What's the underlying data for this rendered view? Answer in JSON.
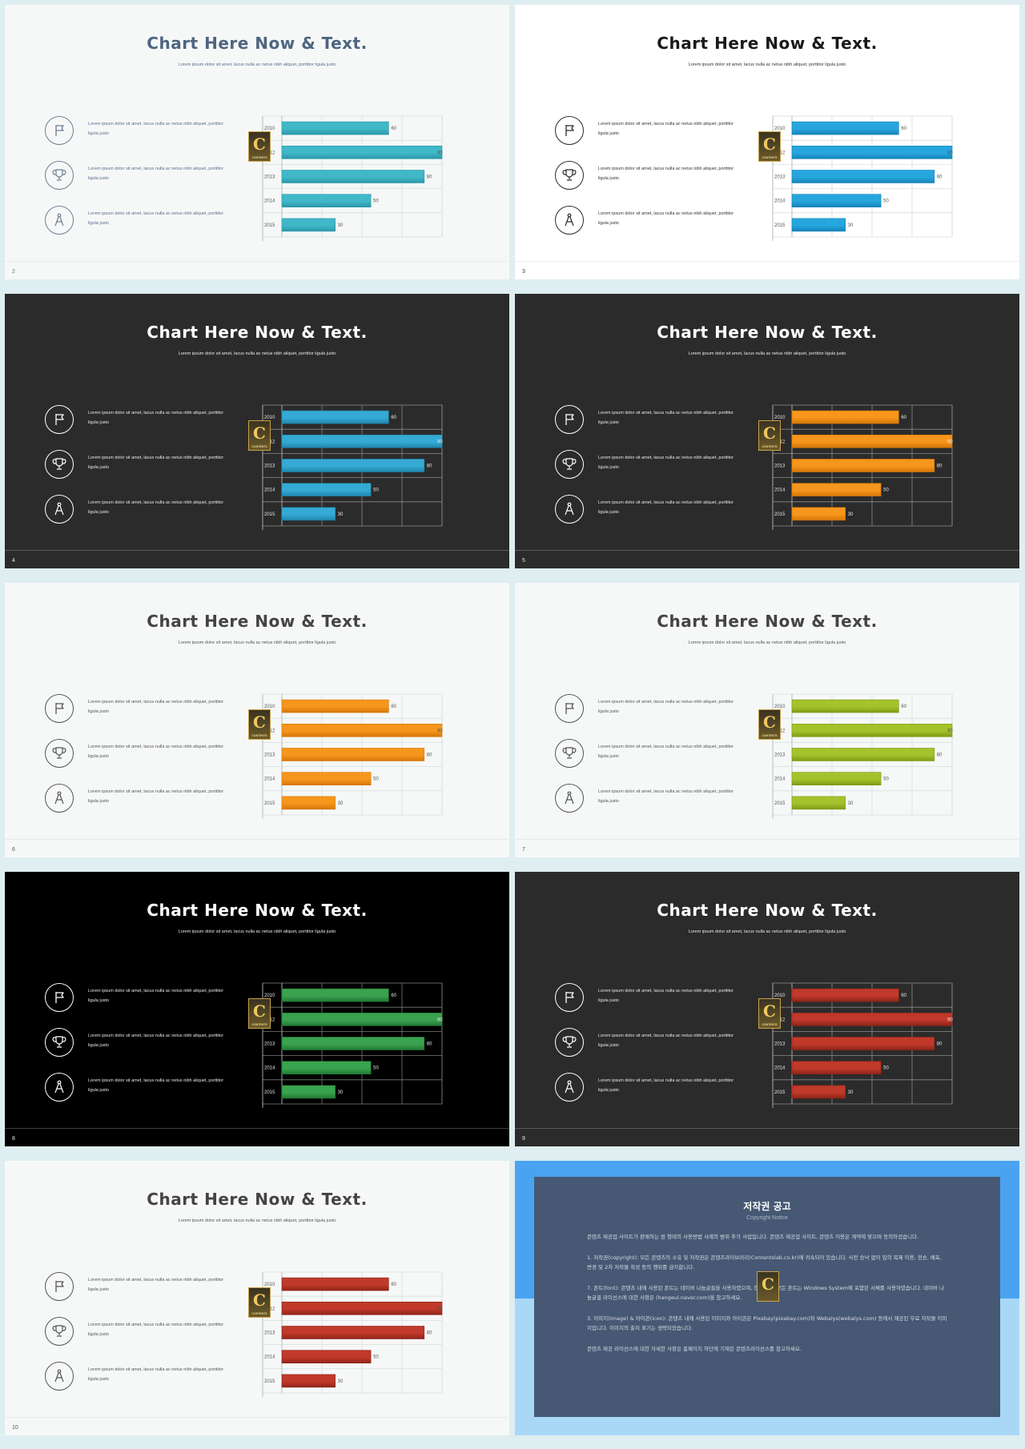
{
  "slides": [
    {
      "number": "2",
      "title": "Chart Here Now & Text.",
      "subtitle": "Lorem ipsum dolor sit amet, lacus nulla ac netus nibh aliquet, porttitor ligula justo",
      "theme": {
        "bg": "#f6f8f8",
        "title": "#4e6580",
        "text": "#5a6f8c",
        "circle": "#6f7f92",
        "grid": "#d8dddd",
        "axis": "#b5bcbc",
        "bar": "#40b8c8",
        "barDark": "#2a98a8",
        "label": "#555555"
      }
    },
    {
      "number": "3",
      "title": "Chart Here Now & Text.",
      "subtitle": "Lorem ipsum dolor sit amet, lacus nulla ac netus nibh aliquet, porttitor ligula justo",
      "theme": {
        "bg": "#ffffff",
        "title": "#1a1a1a",
        "text": "#333333",
        "circle": "#2a2a2a",
        "grid": "#d8dddd",
        "axis": "#b5bcbc",
        "bar": "#27a6de",
        "barDark": "#1583b8",
        "label": "#555555"
      }
    },
    {
      "number": "4",
      "title": "Chart Here Now & Text.",
      "subtitle": "Lorem ipsum dolor sit amet, lacus nulla ac netus nibh aliquet, porttitor ligula justo",
      "theme": {
        "bg": "#2b2b2b",
        "title": "#ffffff",
        "text": "#e8e8e8",
        "circle": "#ffffff",
        "grid": "#8a8a8a",
        "axis": "#a8a8a8",
        "bar": "#35aad4",
        "barDark": "#1f86ad",
        "label": "#e8e8e8"
      }
    },
    {
      "number": "5",
      "title": "Chart Here Now & Text.",
      "subtitle": "Lorem ipsum dolor sit amet, lacus nulla ac netus nibh aliquet, porttitor ligula justo",
      "theme": {
        "bg": "#2b2b2b",
        "title": "#ffffff",
        "text": "#e8e8e8",
        "circle": "#ffffff",
        "grid": "#8a8a8a",
        "axis": "#a8a8a8",
        "bar": "#f7961c",
        "barDark": "#d57708",
        "label": "#e8e8e8"
      }
    },
    {
      "number": "6",
      "title": "Chart Here Now & Text.",
      "subtitle": "Lorem ipsum dolor sit amet, lacus nulla ac netus nibh aliquet, porttitor ligula justo",
      "theme": {
        "bg": "#f6f8f8",
        "title": "#444444",
        "text": "#555555",
        "circle": "#555555",
        "grid": "#d8dddd",
        "axis": "#b5bcbc",
        "bar": "#f7961c",
        "barDark": "#d57708",
        "label": "#555555"
      }
    },
    {
      "number": "7",
      "title": "Chart Here Now & Text.",
      "subtitle": "Lorem ipsum dolor sit amet, lacus nulla ac netus nibh aliquet, porttitor ligula justo",
      "theme": {
        "bg": "#f6f8f8",
        "title": "#444444",
        "text": "#555555",
        "circle": "#555555",
        "grid": "#d8dddd",
        "axis": "#b5bcbc",
        "bar": "#a4c22b",
        "barDark": "#7f9a16",
        "label": "#555555"
      }
    },
    {
      "number": "8",
      "title": "Chart Here Now & Text.",
      "subtitle": "Lorem ipsum dolor sit amet, lacus nulla ac netus nibh aliquet, porttitor ligula justo",
      "theme": {
        "bg": "#000000",
        "title": "#ffffff",
        "text": "#e8e8e8",
        "circle": "#ffffff",
        "grid": "#7a7a7a",
        "axis": "#a8a8a8",
        "bar": "#3aa34f",
        "barDark": "#237a35",
        "label": "#e8e8e8"
      }
    },
    {
      "number": "9",
      "title": "Chart Here Now & Text.",
      "subtitle": "Lorem ipsum dolor sit amet, lacus nulla ac netus nibh aliquet, porttitor ligula justo",
      "theme": {
        "bg": "#2b2b2b",
        "title": "#ffffff",
        "text": "#e8e8e8",
        "circle": "#ffffff",
        "grid": "#8a8a8a",
        "axis": "#a8a8a8",
        "bar": "#c0392b",
        "barDark": "#8f2418",
        "label": "#e8e8e8"
      }
    },
    {
      "number": "10",
      "title": "Chart Here Now & Text.",
      "subtitle": "Lorem ipsum dolor sit amet, lacus nulla ac netus nibh aliquet, porttitor ligula justo",
      "theme": {
        "bg": "#f6f8f8",
        "title": "#444444",
        "text": "#555555",
        "circle": "#555555",
        "grid": "#d8dddd",
        "axis": "#b5bcbc",
        "bar": "#c0392b",
        "barDark": "#8f2418",
        "label": "#555555"
      }
    }
  ],
  "row_text": "Lorem ipsum dolor sit amet, lacus nulla ac netus nibh aliquet, porttitor ligula justo",
  "icons": [
    "flag-icon",
    "trophy-icon",
    "compass-icon"
  ],
  "logo": {
    "letter": "C",
    "caption": "CONTENTS"
  },
  "chart_data": {
    "type": "bar",
    "orientation": "horizontal",
    "categories": [
      "2010",
      "2012",
      "2013",
      "2014",
      "2015"
    ],
    "values": [
      60,
      90,
      80,
      50,
      30
    ],
    "data_labels": [
      "60",
      "90",
      "80",
      "50",
      "30"
    ],
    "xlim": [
      0,
      90
    ],
    "grid": true
  },
  "copyright": {
    "number": "",
    "title": "저작권 공고",
    "subtitle": "Copyright Notice",
    "paragraphs": [
      "콘텐츠 제공업 사이트가 판매하는 원 형태의 사용방법 사례의 범위 추가 사업입니다. 콘텐츠 제공업 사이트, 콘텐츠 이용은 계약에 맞으며 동의하셨습니다.",
      "1. 저작권(copyright): 모든 콘텐츠의 소유 및 저작권은 콘텐츠라이브러리(Contentslab.co.kr)에 귀속되어 있습니다. 사전 승낙 없이 임의 복제 이용, 전송, 배포, 변경 및 2차 저작물 작성 등의 행위를 금지합니다.",
      "7. 폰트(font): 콘텐츠 내에 사용된 폰트는 네이버 나눔글꼴을 사용하였으며, 한글 외의 모든 폰트는 Windows System에 포함된 서체를 사용하였습니다. 네이버 나눔글꼴 라이선스에 대한 사항은 (hangeul.naver.com)을 참고하세요.",
      "3. 이미지(image) & 아이콘(icon): 콘텐츠 내에 사용된 이미지와 아이콘은 Pixabay(pixabay.com)와 Webalys(webalys.com) 등에서 제공된 무료 저작물 이미지입니다. 이미지의 출처 표기는 생략되었습니다.",
      "콘텐츠 제공 라이선스에 대한 자세한 사항은 홈페이지 하단에 기재된 콘텐츠라이선스를 참고하세요."
    ]
  }
}
